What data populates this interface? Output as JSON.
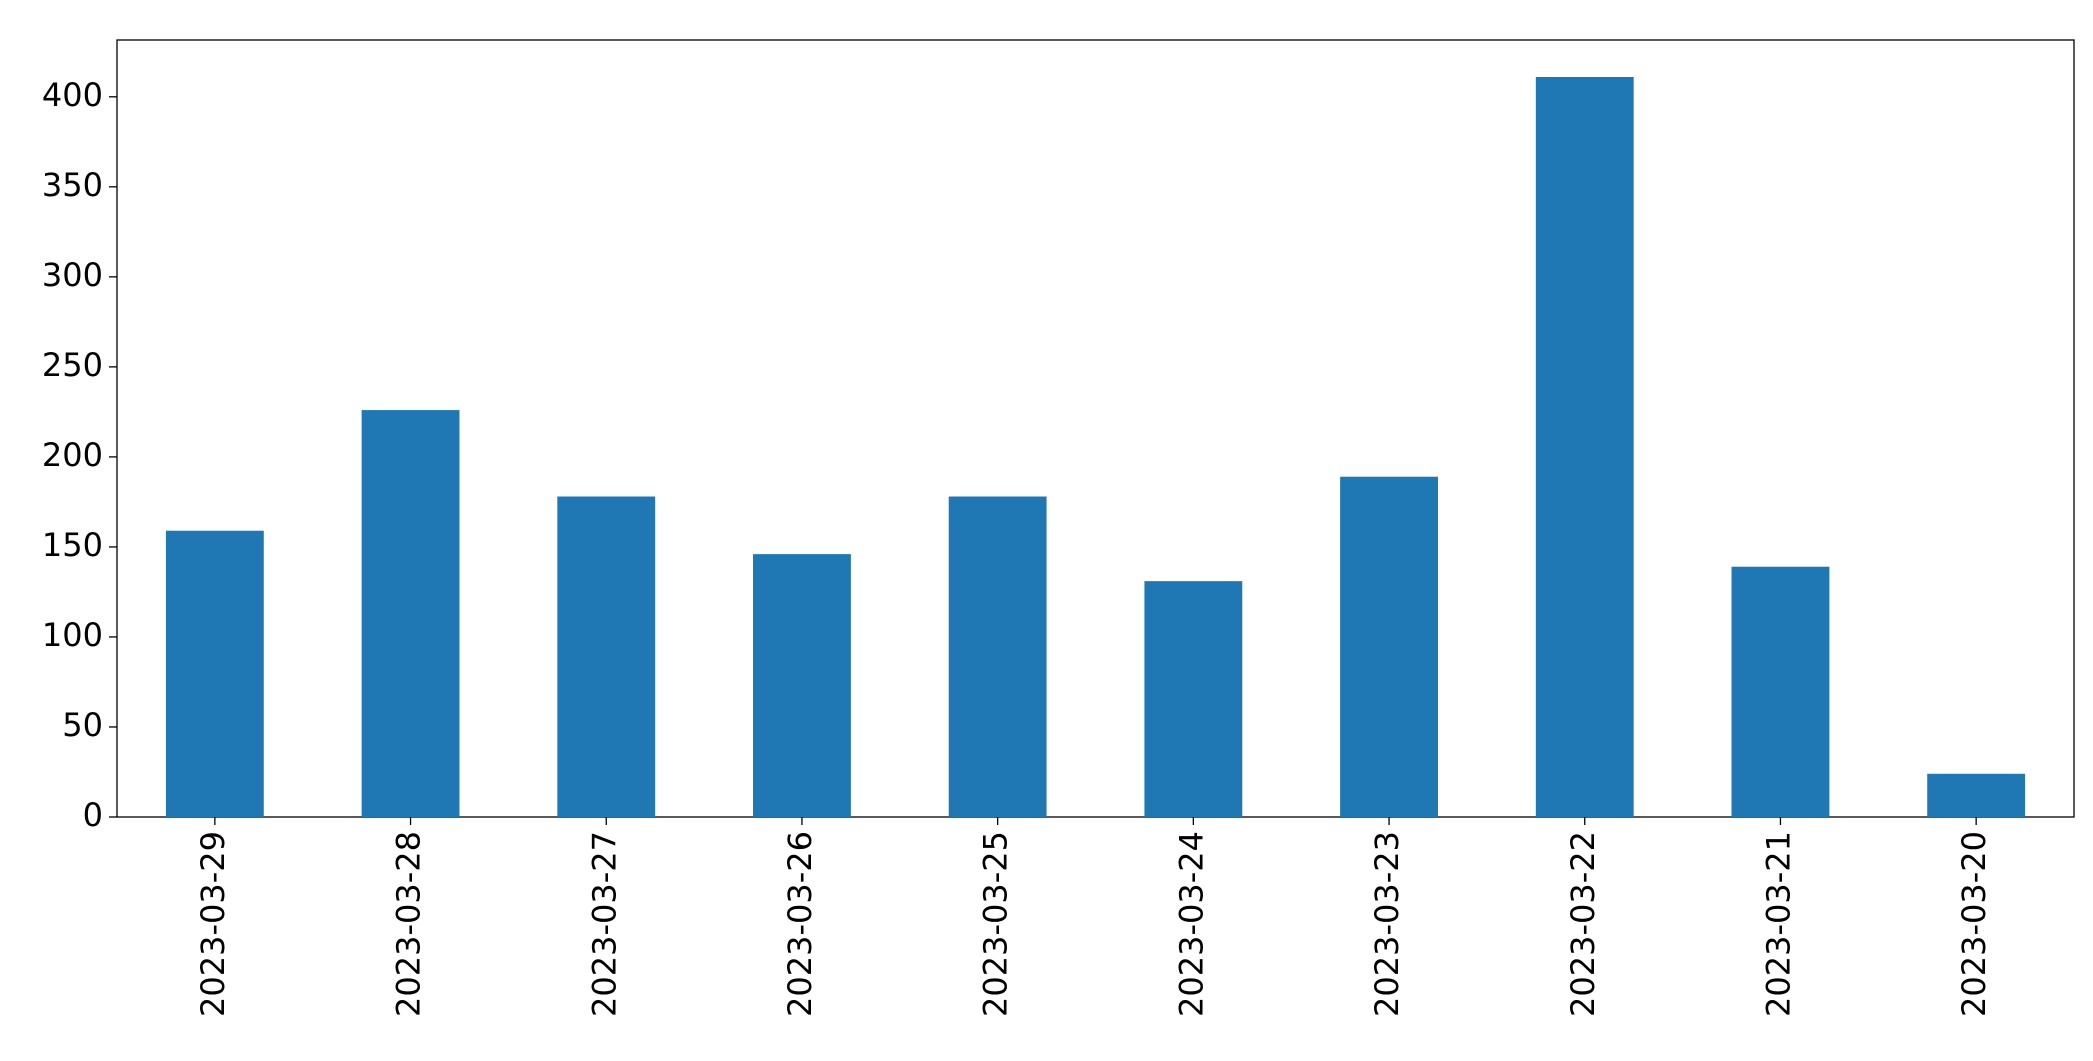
{
  "chart_data": {
    "type": "bar",
    "categories": [
      "2023-03-29",
      "2023-03-28",
      "2023-03-27",
      "2023-03-26",
      "2023-03-25",
      "2023-03-24",
      "2023-03-23",
      "2023-03-22",
      "2023-03-21",
      "2023-03-20"
    ],
    "values": [
      159,
      226,
      178,
      146,
      178,
      131,
      189,
      411,
      139,
      24
    ],
    "color": "#1f77b4",
    "ylim": [
      0,
      431.55
    ],
    "yticks": [
      0,
      50,
      100,
      150,
      200,
      250,
      300,
      350,
      400
    ],
    "grid": false
  }
}
